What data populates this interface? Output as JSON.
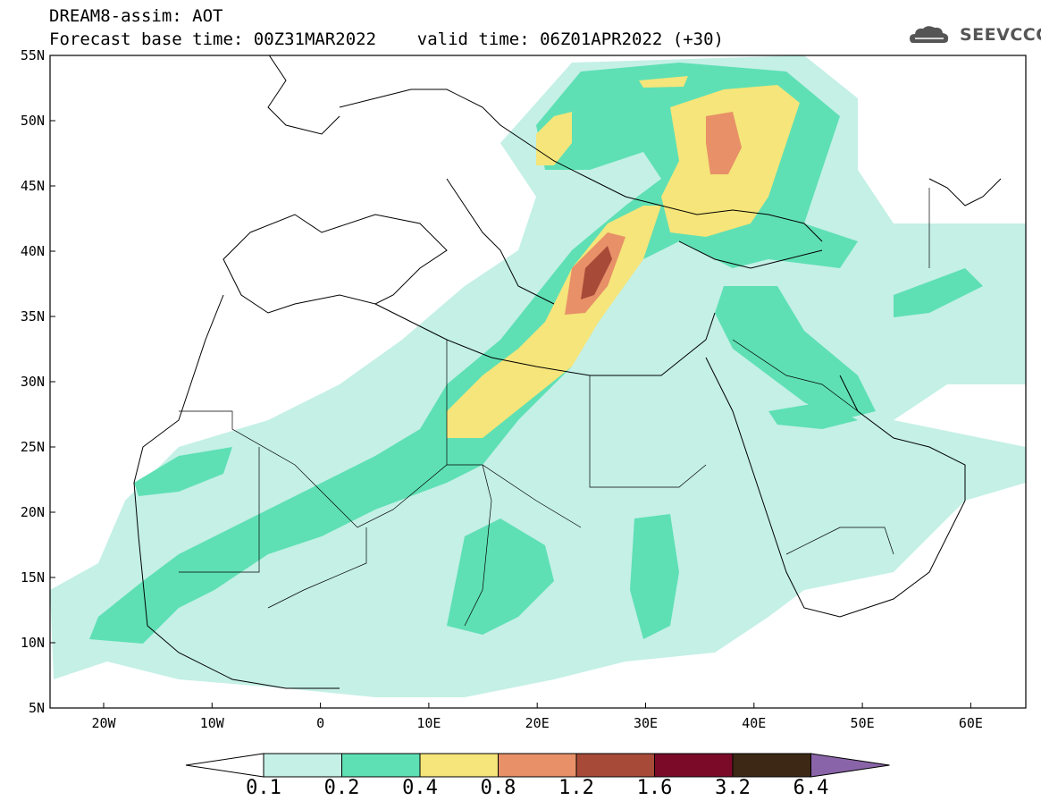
{
  "header": {
    "title_line1": "DREAM8-assim: AOT",
    "title_line2": "Forecast base time: 00Z31MAR2022    valid time: 06Z01APR2022 (+30)",
    "logo_text": "SEEVCCC"
  },
  "map": {
    "lat_labels": [
      "55N",
      "50N",
      "45N",
      "40N",
      "35N",
      "30N",
      "25N",
      "20N",
      "15N",
      "10N",
      "5N"
    ],
    "lon_labels": [
      "20W",
      "10W",
      "0",
      "10E",
      "20E",
      "30E",
      "40E",
      "50E",
      "60E"
    ],
    "field": "AOT"
  },
  "legend": {
    "levels": [
      "0.1",
      "0.2",
      "0.4",
      "0.8",
      "1.2",
      "1.6",
      "3.2",
      "6.4"
    ],
    "colors": [
      "#ffffff",
      "#c4f0e6",
      "#5ee0b4",
      "#f5e57a",
      "#e89068",
      "#a84a38",
      "#7a0a28",
      "#3c2814",
      "#8a64a8"
    ]
  }
}
